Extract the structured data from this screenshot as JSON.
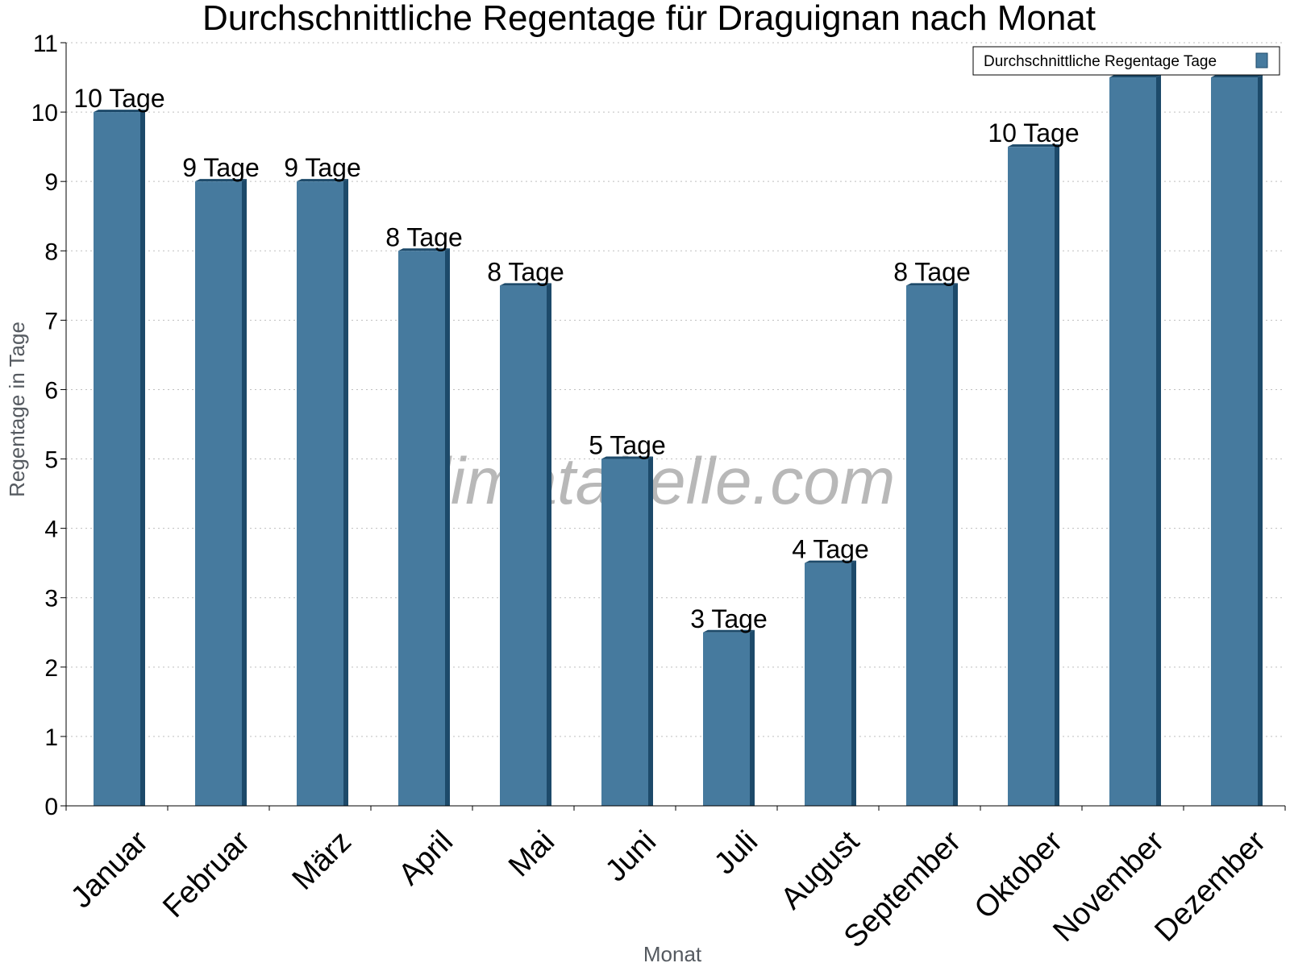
{
  "chart_data": {
    "type": "bar",
    "title": "Durchschnittliche Regentage für Draguignan nach Monat",
    "xlabel": "Monat",
    "ylabel": "Regentage in Tage",
    "ylim": [
      0,
      11
    ],
    "yticks": [
      0,
      1,
      2,
      3,
      4,
      5,
      6,
      7,
      8,
      9,
      10,
      11
    ],
    "grid": true,
    "legend_position": "top-right",
    "categories": [
      "Januar",
      "Februar",
      "März",
      "April",
      "Mai",
      "Juni",
      "Juli",
      "August",
      "September",
      "Oktober",
      "November",
      "Dezember"
    ],
    "series": [
      {
        "name": "Durchschnittliche Regentage Tage",
        "color": "#467a9e",
        "values": [
          10,
          9,
          9,
          8,
          7.5,
          5,
          2.5,
          3.5,
          7.5,
          9.5,
          10.5,
          10.5
        ],
        "data_labels": [
          "10 Tage",
          "9 Tage",
          "9 Tage",
          "8 Tage",
          "8 Tage",
          "5 Tage",
          "3 Tage",
          "4 Tage",
          "8 Tage",
          "10 Tage",
          "",
          ""
        ]
      }
    ],
    "watermark": "klimatabelle.com"
  }
}
